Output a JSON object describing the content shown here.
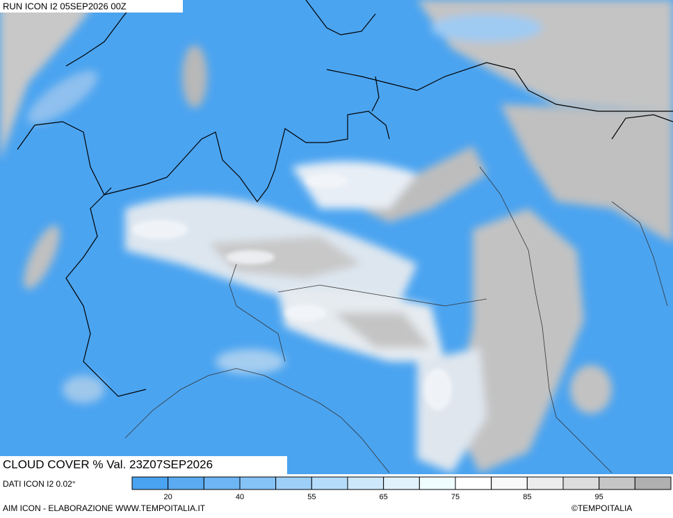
{
  "header": {
    "run": "RUN ICON I2 05SEP2026 00Z"
  },
  "map": {
    "title": "CLOUD COVER % Val. 23Z07SEP2026",
    "data_note": "DATI ICON I2 0.02°"
  },
  "legend": {
    "colors": [
      "#4aa3f0",
      "#5aabf2",
      "#6db5f4",
      "#85c2f6",
      "#9dcff8",
      "#b5dcfa",
      "#cde8fb",
      "#e2f2fd",
      "#effdff",
      "#ffffff",
      "#f8f8f8",
      "#ececec",
      "#dcdcdc",
      "#c6c6c6",
      "#b0b0b0"
    ],
    "labels": [
      "20",
      "40",
      "55",
      "65",
      "75",
      "85",
      "95"
    ]
  },
  "footer": {
    "credit": "AIM ICON - ELABORAZIONE WWW.TEMPOITALIA.IT",
    "copyright": "©TEMPOITALIA"
  }
}
